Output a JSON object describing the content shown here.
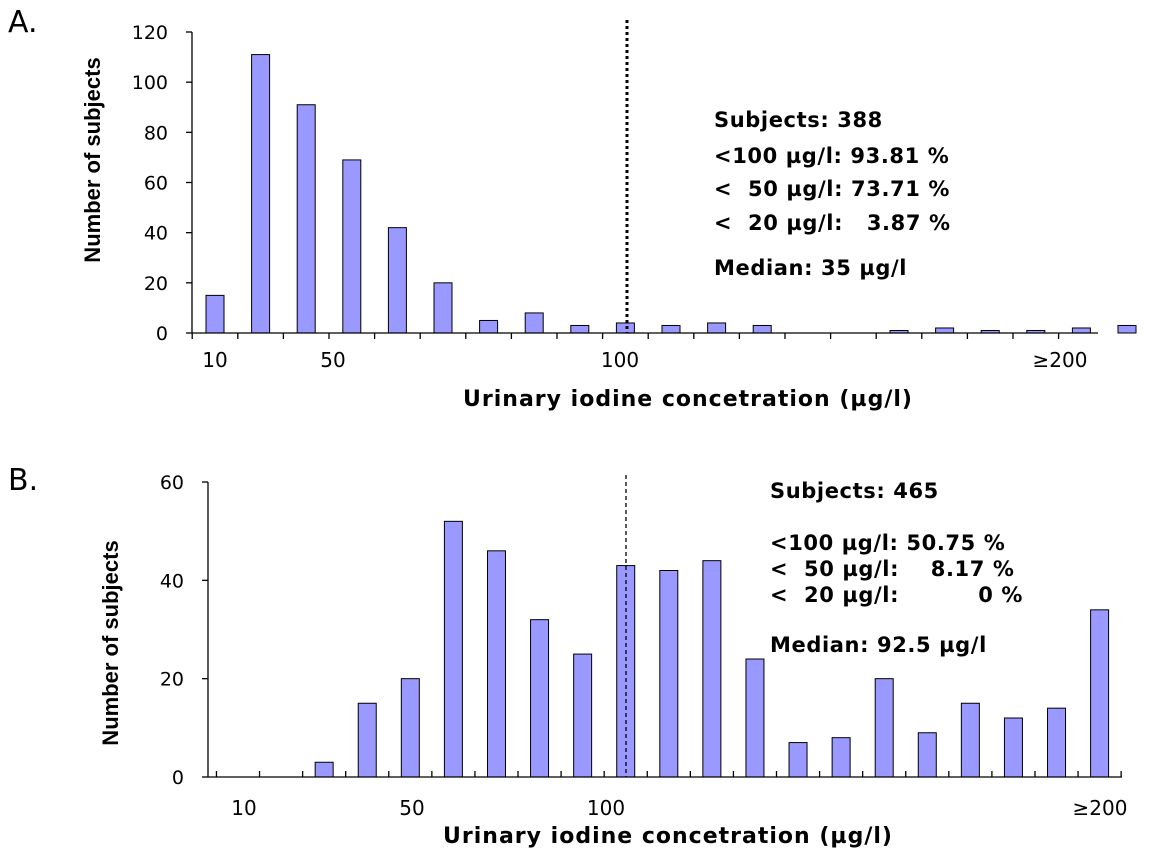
{
  "chart_data": [
    {
      "type": "bar",
      "panel_label": "A.",
      "xlabel": "Urinary iodine concetration (µg/l)",
      "ylabel": "Number of subjects",
      "ylim": [
        0,
        120
      ],
      "yticks": [
        "0",
        "20",
        "40",
        "60",
        "80",
        "100",
        "120"
      ],
      "xtick_labels": [
        "10",
        "50",
        "100",
        "≥200"
      ],
      "values": [
        15,
        111,
        91,
        69,
        42,
        20,
        5,
        8,
        3,
        4,
        3,
        4,
        3,
        0,
        0,
        1,
        2,
        1,
        1,
        2,
        3
      ],
      "reference_line": "100 µg/l (dotted)",
      "annotations": [
        "Subjects: 388",
        "<100 µg/l: 93.81 %",
        "<  50 µg/l: 73.71 %",
        "<  20 µg/l:   3.87 %",
        "Median: 35 µg/l"
      ],
      "bar_color": "#9999ff"
    },
    {
      "type": "bar",
      "panel_label": "B.",
      "xlabel": "Urinary iodine concetration (µg/l)",
      "ylabel": "Number of subjects",
      "ylim": [
        0,
        60
      ],
      "yticks": [
        "0",
        "20",
        "40",
        "60"
      ],
      "xtick_labels": [
        "10",
        "50",
        "100",
        "≥200"
      ],
      "values": [
        0,
        0,
        3,
        15,
        20,
        52,
        46,
        32,
        25,
        43,
        42,
        44,
        24,
        7,
        8,
        20,
        9,
        15,
        12,
        14,
        34
      ],
      "reference_line": "100 µg/l (dashed)",
      "annotations": [
        "Subjects: 465",
        "<100 µg/l: 50.75 %",
        "<  50 µg/l:    8.17 %",
        "<  20 µg/l:          0 %",
        "Median: 92.5 µg/l"
      ],
      "bar_color": "#9999ff"
    }
  ]
}
